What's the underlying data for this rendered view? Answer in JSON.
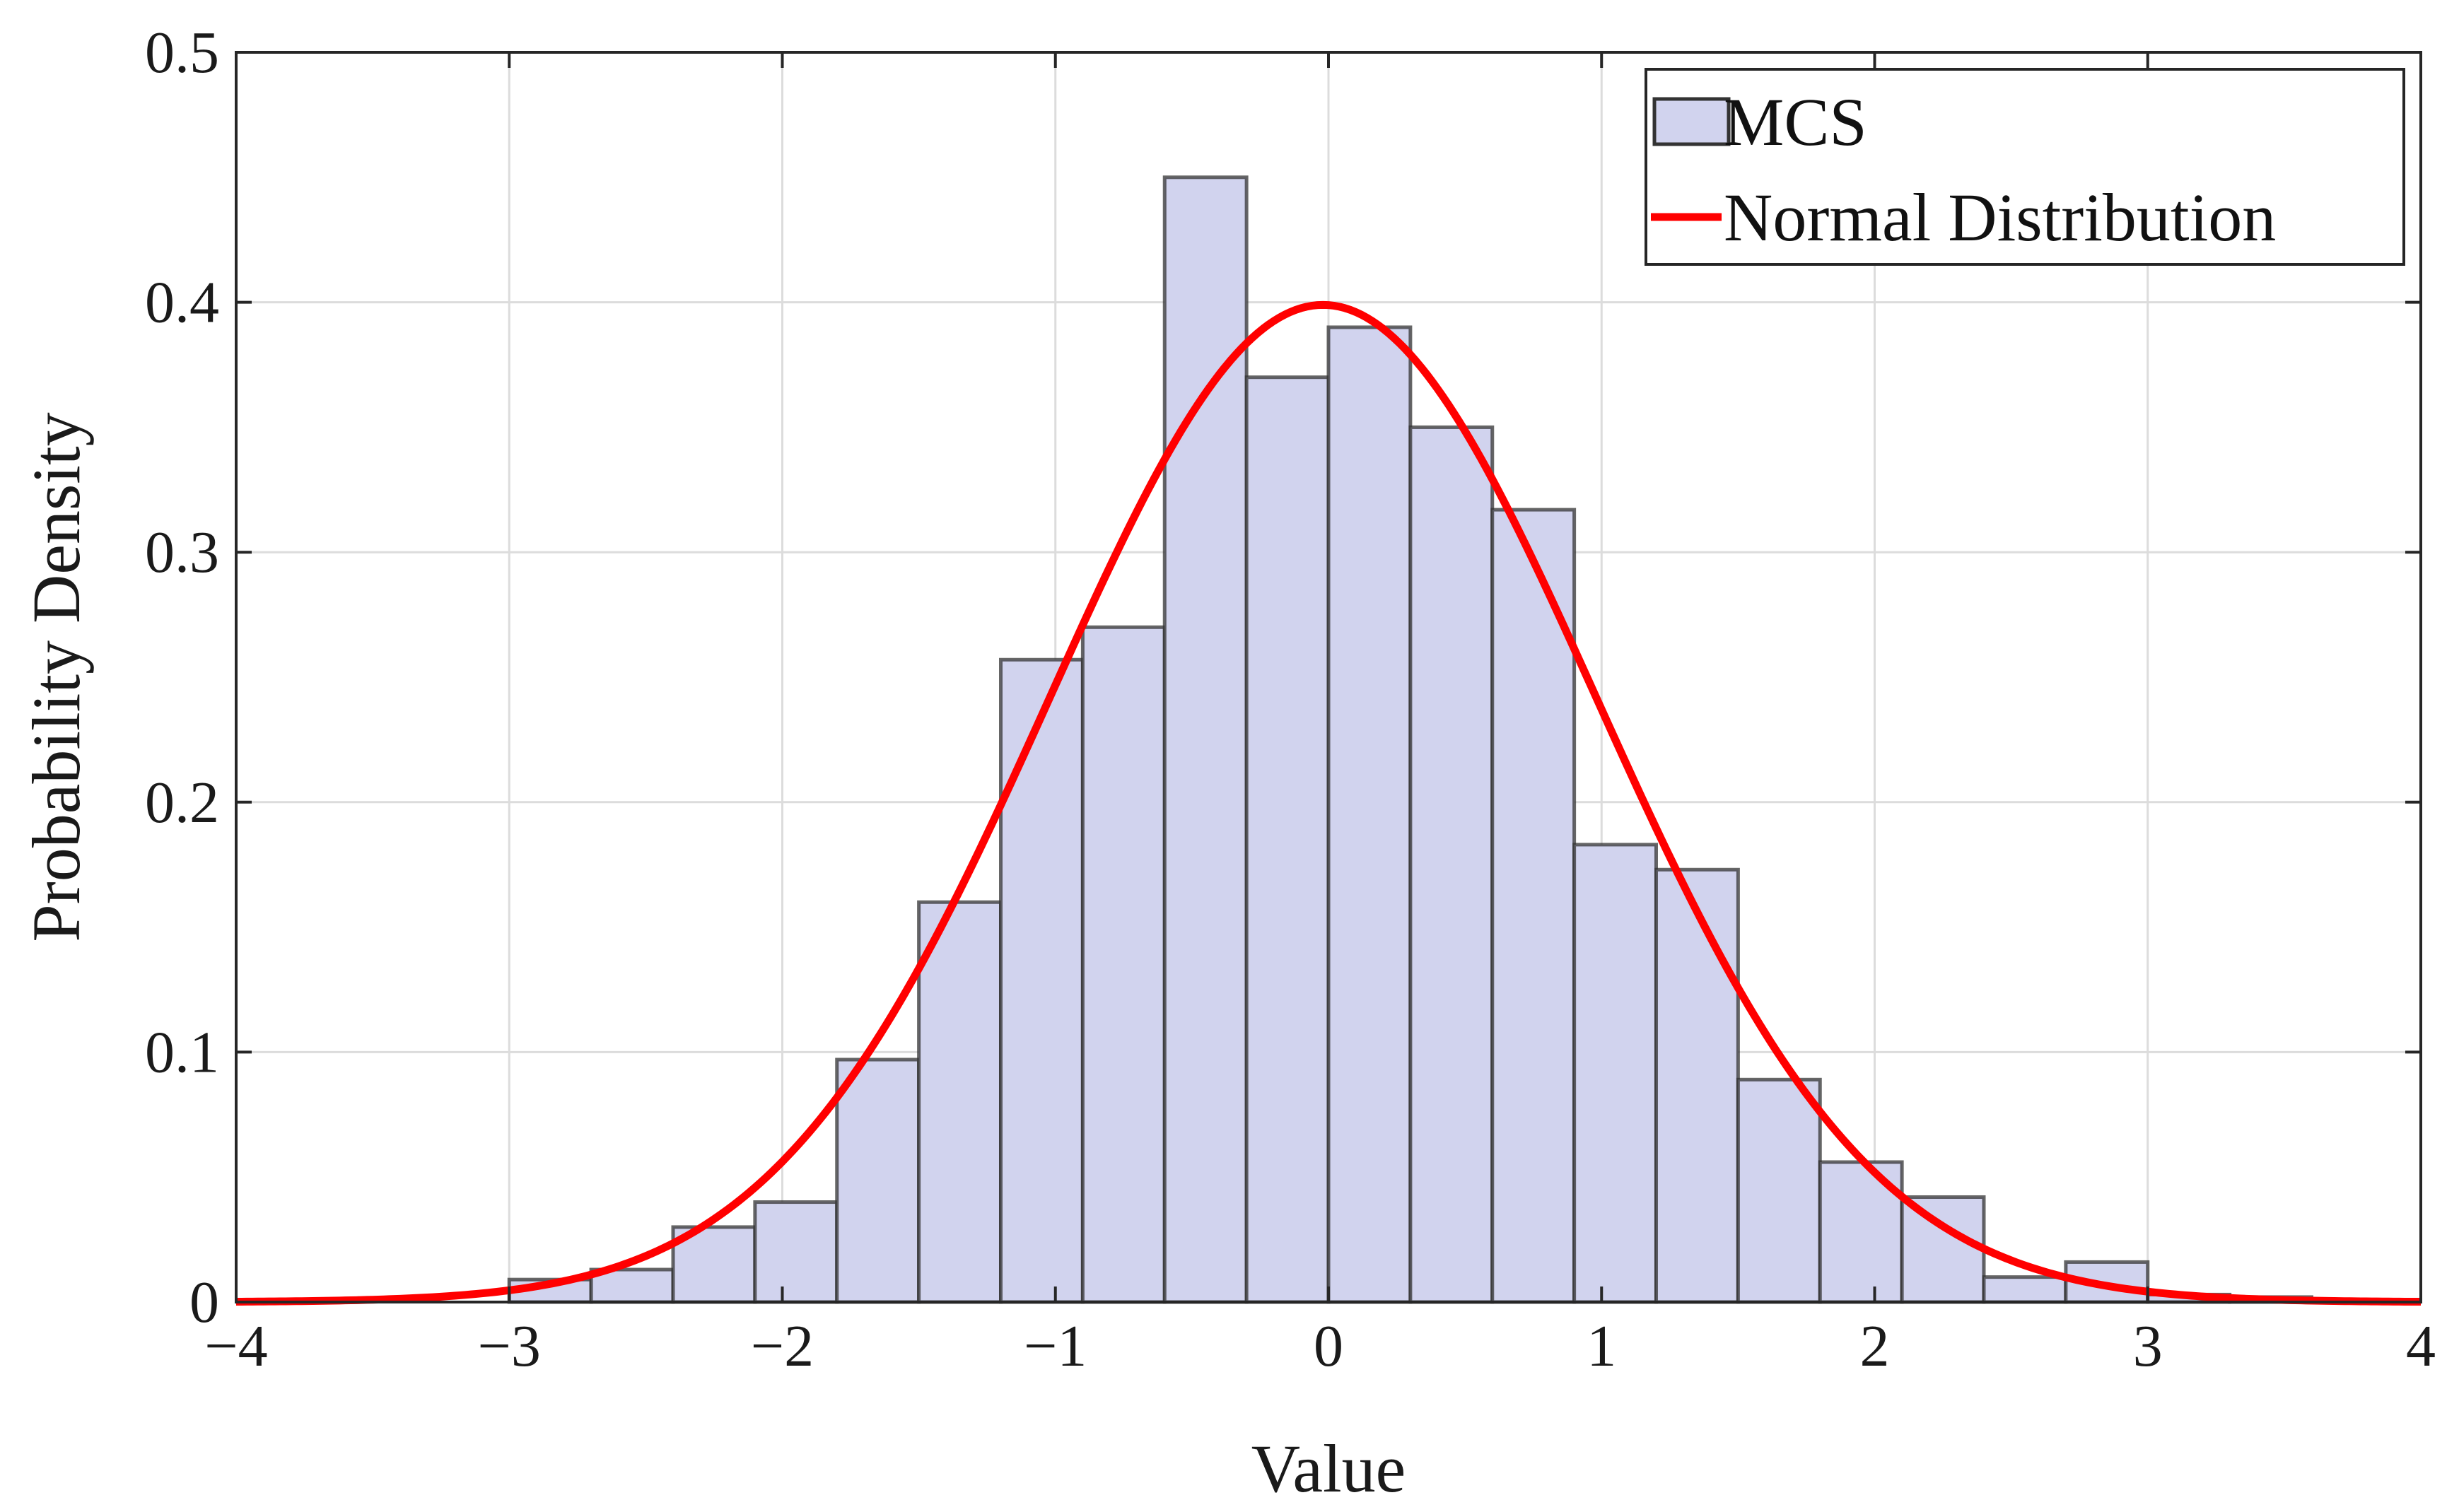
{
  "chart_data": {
    "type": "histogram",
    "title": "",
    "xlabel": "Value",
    "ylabel": "Probability Density",
    "xlim": [
      -4,
      4
    ],
    "ylim": [
      0,
      0.5
    ],
    "xticks": [
      -4,
      -3,
      -2,
      -1,
      0,
      1,
      2,
      3,
      4
    ],
    "xtick_labels": [
      "−4",
      "−3",
      "−2",
      "−1",
      "0",
      "1",
      "2",
      "3",
      "4"
    ],
    "yticks": [
      0,
      0.1,
      0.2,
      0.3,
      0.4,
      0.5
    ],
    "ytick_labels": [
      "0",
      "0.1",
      "0.2",
      "0.3",
      "0.4",
      "0.5"
    ],
    "grid": true,
    "legend_position": "top-right",
    "bin_width": 0.3,
    "histogram": {
      "name": "MCS",
      "color": "#d1d3ee",
      "edge_color": "#333333",
      "bins": [
        {
          "x0": -3.0,
          "x1": -2.7,
          "value": 0.009
        },
        {
          "x0": -2.7,
          "x1": -2.4,
          "value": 0.013
        },
        {
          "x0": -2.4,
          "x1": -2.1,
          "value": 0.03
        },
        {
          "x0": -2.1,
          "x1": -1.8,
          "value": 0.04
        },
        {
          "x0": -1.8,
          "x1": -1.5,
          "value": 0.097
        },
        {
          "x0": -1.5,
          "x1": -1.2,
          "value": 0.16
        },
        {
          "x0": -1.2,
          "x1": -0.9,
          "value": 0.257
        },
        {
          "x0": -0.9,
          "x1": -0.6,
          "value": 0.27
        },
        {
          "x0": -0.6,
          "x1": -0.3,
          "value": 0.45
        },
        {
          "x0": -0.3,
          "x1": 0.0,
          "value": 0.37
        },
        {
          "x0": 0.0,
          "x1": 0.3,
          "value": 0.39
        },
        {
          "x0": 0.3,
          "x1": 0.6,
          "value": 0.35
        },
        {
          "x0": 0.6,
          "x1": 0.9,
          "value": 0.317
        },
        {
          "x0": 0.9,
          "x1": 1.2,
          "value": 0.183
        },
        {
          "x0": 1.2,
          "x1": 1.5,
          "value": 0.173
        },
        {
          "x0": 1.5,
          "x1": 1.8,
          "value": 0.089
        },
        {
          "x0": 1.8,
          "x1": 2.1,
          "value": 0.056
        },
        {
          "x0": 2.1,
          "x1": 2.4,
          "value": 0.042
        },
        {
          "x0": 2.4,
          "x1": 2.7,
          "value": 0.01
        },
        {
          "x0": 2.7,
          "x1": 3.0,
          "value": 0.016
        },
        {
          "x0": 3.0,
          "x1": 3.3,
          "value": 0.003
        },
        {
          "x0": 3.3,
          "x1": 3.6,
          "value": 0.002
        }
      ]
    },
    "curve": {
      "name": "Normal Distribution",
      "color": "#ff0000",
      "mean": -0.02,
      "std": 1.0,
      "x_range": [
        -4,
        4
      ]
    }
  }
}
